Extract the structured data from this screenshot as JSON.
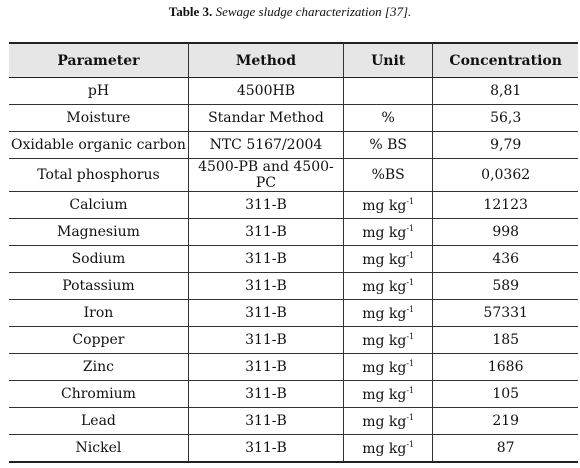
{
  "caption": {
    "label": "Table 3.",
    "text": "Sewage sludge characterization [37]."
  },
  "headers": [
    "Parameter",
    "Method",
    "Unit",
    "Concentration"
  ],
  "rows": [
    {
      "parameter": "pH",
      "method": "4500HB",
      "unit": "",
      "unit_sup": "",
      "concentration": "8,81"
    },
    {
      "parameter": "Moisture",
      "method": "Standar Method",
      "unit": "%",
      "unit_sup": "",
      "concentration": "56,3"
    },
    {
      "parameter": "Oxidable organic carbon",
      "method": "NTC 5167/2004",
      "unit": "% BS",
      "unit_sup": "",
      "concentration": "9,79"
    },
    {
      "parameter": "Total phosphorus",
      "method": "4500-PB and 4500-PC",
      "unit": "%BS",
      "unit_sup": "",
      "concentration": "0,0362"
    },
    {
      "parameter": "Calcium",
      "method": "311-B",
      "unit": "mg kg",
      "unit_sup": "-1",
      "concentration": "12123"
    },
    {
      "parameter": "Magnesium",
      "method": "311-B",
      "unit": "mg kg",
      "unit_sup": "-1",
      "concentration": "998"
    },
    {
      "parameter": "Sodium",
      "method": "311-B",
      "unit": "mg kg",
      "unit_sup": "-1",
      "concentration": "436"
    },
    {
      "parameter": "Potassium",
      "method": "311-B",
      "unit": "mg kg",
      "unit_sup": "-1",
      "concentration": "589"
    },
    {
      "parameter": "Iron",
      "method": "311-B",
      "unit": "mg kg",
      "unit_sup": "-1",
      "concentration": "57331"
    },
    {
      "parameter": "Copper",
      "method": "311-B",
      "unit": "mg kg",
      "unit_sup": "-1",
      "concentration": "185"
    },
    {
      "parameter": "Zinc",
      "method": "311-B",
      "unit": "mg kg",
      "unit_sup": "-1",
      "concentration": "1686"
    },
    {
      "parameter": "Chromium",
      "method": "311-B",
      "unit": "mg kg",
      "unit_sup": "-1",
      "concentration": "105"
    },
    {
      "parameter": "Lead",
      "method": "311-B",
      "unit": "mg kg",
      "unit_sup": "-1",
      "concentration": "219"
    },
    {
      "parameter": "Nickel",
      "method": "311-B",
      "unit": "mg kg",
      "unit_sup": "-1",
      "concentration": "87"
    }
  ]
}
